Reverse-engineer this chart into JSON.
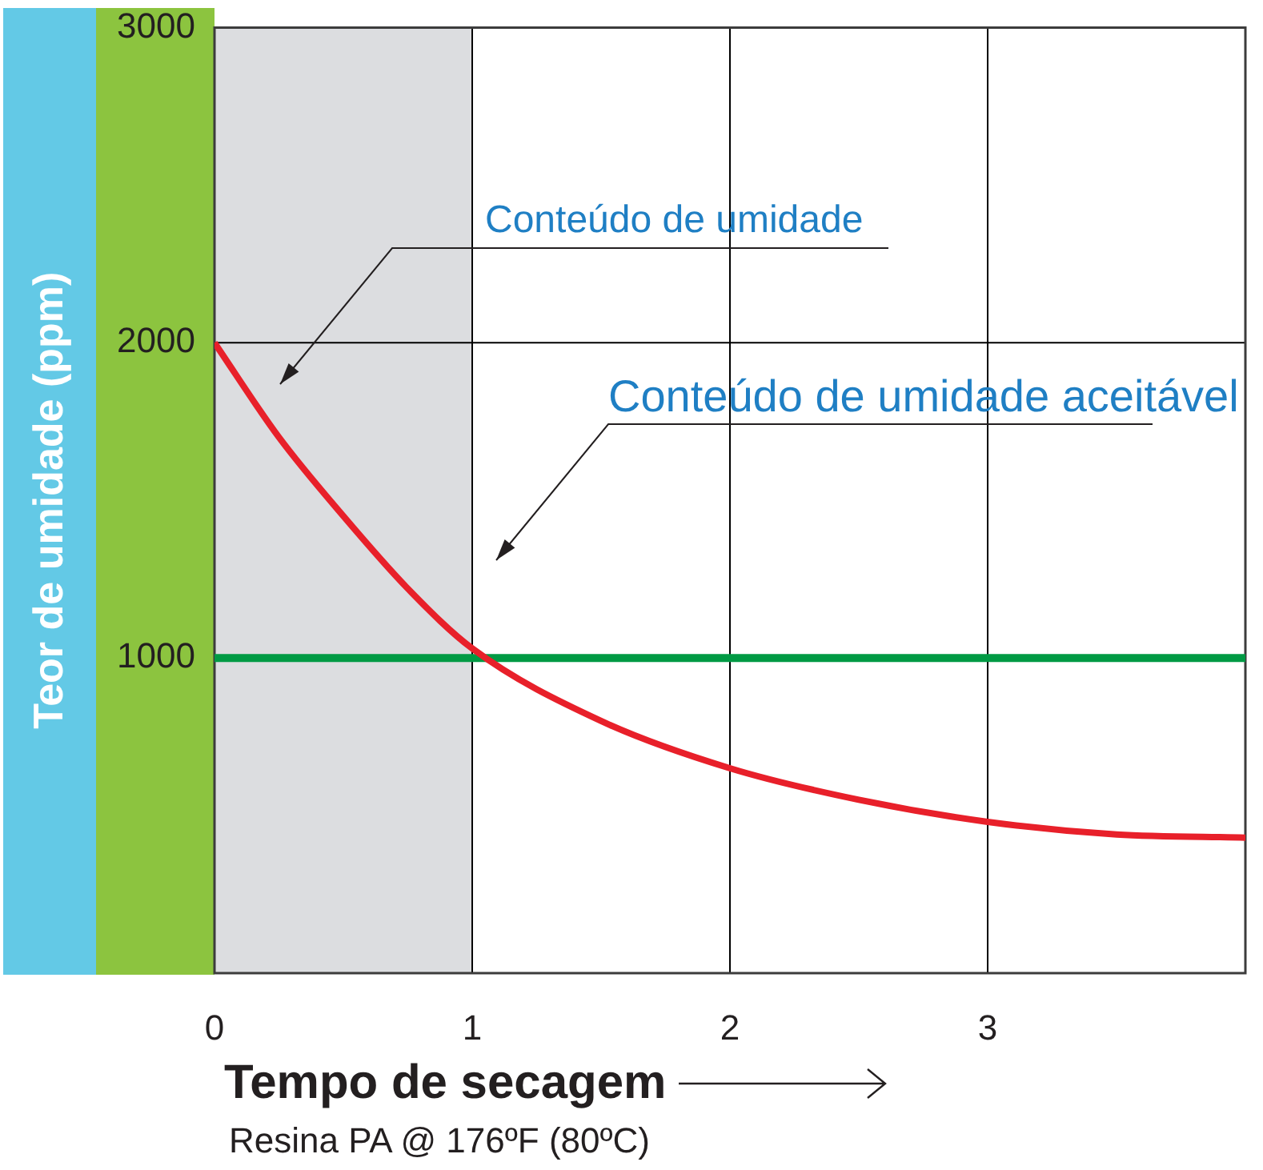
{
  "chart_data": {
    "type": "line",
    "xlabel": "Tempo de secagem",
    "ylabel": "Teor de umidade (ppm)",
    "x": [
      0,
      0.25,
      0.5,
      0.75,
      1,
      1.5,
      2,
      2.5,
      3,
      3.5,
      4
    ],
    "series": [
      {
        "color": "#e8202a",
        "values": [
          2000,
          1700,
          1450,
          1220,
          1030,
          800,
          650,
          550,
          480,
          440,
          430
        ]
      }
    ],
    "xlim": [
      0,
      4
    ],
    "xticks": [
      0,
      1,
      2,
      3
    ],
    "ylim": [
      0,
      3000
    ],
    "yticks": [
      1000,
      2000,
      3000
    ],
    "grid": true,
    "marker": "none",
    "line_style": "solid",
    "ref_lines": [
      {
        "axis": "y",
        "value": 1000,
        "color": "#009a44"
      }
    ],
    "bands": [
      {
        "axis": "x",
        "from": 0,
        "to": 1,
        "color": "#dcdde0"
      }
    ],
    "annotations": [
      "Conteúdo de umidade",
      "Conteúdo de umidade aceitável",
      "Resina PA @ 176ºF (80ºC)"
    ]
  }
}
